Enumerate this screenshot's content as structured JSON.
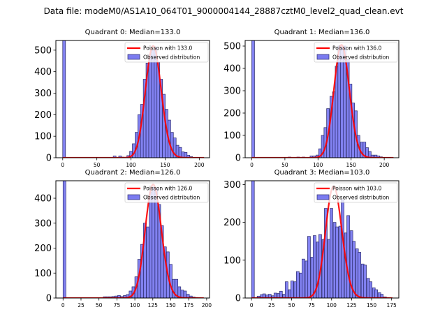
{
  "suptitle": "Data file: modeM0/AS1A10_064T01_9000004144_28887cztM0_level2_quad_clean.evt",
  "colors": {
    "bar_fill": "#7b7bf0",
    "bar_edge": "#2b2b6b",
    "poisson_line": "#ff0000"
  },
  "chart_data": [
    {
      "type": "bar",
      "title": "Quadrant 0: Median=133.0",
      "median": 133.0,
      "xlim": [
        -10,
        215
      ],
      "ylim": [
        0,
        545
      ],
      "xticks": [
        0,
        50,
        100,
        150,
        200
      ],
      "yticks": [
        0,
        100,
        200,
        300,
        400,
        500
      ],
      "bin_width": 4.1,
      "legend": {
        "position": "top-right",
        "entries": [
          "Poisson with 133.0",
          "Observed distribution"
        ]
      },
      "poisson_peak": 520,
      "bins": [
        {
          "x": 0,
          "y": 545
        },
        {
          "x": 74,
          "y": 8
        },
        {
          "x": 82,
          "y": 8
        },
        {
          "x": 86,
          "y": 3
        },
        {
          "x": 94,
          "y": 10
        },
        {
          "x": 98,
          "y": 30
        },
        {
          "x": 102,
          "y": 65
        },
        {
          "x": 106,
          "y": 118
        },
        {
          "x": 110,
          "y": 200
        },
        {
          "x": 114,
          "y": 248
        },
        {
          "x": 118,
          "y": 365
        },
        {
          "x": 122,
          "y": 440
        },
        {
          "x": 126,
          "y": 478
        },
        {
          "x": 130,
          "y": 500
        },
        {
          "x": 134,
          "y": 515
        },
        {
          "x": 138,
          "y": 445
        },
        {
          "x": 142,
          "y": 365
        },
        {
          "x": 146,
          "y": 295
        },
        {
          "x": 150,
          "y": 225
        },
        {
          "x": 154,
          "y": 175
        },
        {
          "x": 158,
          "y": 118
        },
        {
          "x": 162,
          "y": 92
        },
        {
          "x": 166,
          "y": 58
        },
        {
          "x": 170,
          "y": 48
        },
        {
          "x": 174,
          "y": 27
        },
        {
          "x": 178,
          "y": 25
        },
        {
          "x": 182,
          "y": 12
        },
        {
          "x": 186,
          "y": 5
        },
        {
          "x": 190,
          "y": 2
        },
        {
          "x": 194,
          "y": 2
        },
        {
          "x": 198,
          "y": 2
        },
        {
          "x": 202,
          "y": 1
        }
      ]
    },
    {
      "type": "bar",
      "title": "Quadrant 1: Median=136.0",
      "median": 136.0,
      "xlim": [
        -10,
        222
      ],
      "ylim": [
        0,
        525
      ],
      "xticks": [
        0,
        50,
        100,
        150,
        200
      ],
      "yticks": [
        0,
        100,
        200,
        300,
        400,
        500
      ],
      "bin_width": 4.2,
      "legend": {
        "position": "top-right",
        "entries": [
          "Poisson with 136.0",
          "Observed distribution"
        ]
      },
      "poisson_peak": 505,
      "bins": [
        {
          "x": 0,
          "y": 525
        },
        {
          "x": 55,
          "y": 3
        },
        {
          "x": 68,
          "y": 3
        },
        {
          "x": 76,
          "y": 3
        },
        {
          "x": 88,
          "y": 8
        },
        {
          "x": 92,
          "y": 8
        },
        {
          "x": 97,
          "y": 12
        },
        {
          "x": 101,
          "y": 40
        },
        {
          "x": 105,
          "y": 100
        },
        {
          "x": 109,
          "y": 135
        },
        {
          "x": 113,
          "y": 220
        },
        {
          "x": 118,
          "y": 275
        },
        {
          "x": 122,
          "y": 295
        },
        {
          "x": 126,
          "y": 410
        },
        {
          "x": 130,
          "y": 500
        },
        {
          "x": 134,
          "y": 495
        },
        {
          "x": 138,
          "y": 500
        },
        {
          "x": 143,
          "y": 440
        },
        {
          "x": 147,
          "y": 330
        },
        {
          "x": 151,
          "y": 245
        },
        {
          "x": 155,
          "y": 210
        },
        {
          "x": 159,
          "y": 100
        },
        {
          "x": 164,
          "y": 70
        },
        {
          "x": 168,
          "y": 70
        },
        {
          "x": 172,
          "y": 45
        },
        {
          "x": 176,
          "y": 28
        },
        {
          "x": 180,
          "y": 12
        },
        {
          "x": 185,
          "y": 12
        },
        {
          "x": 189,
          "y": 8
        },
        {
          "x": 193,
          "y": 4
        },
        {
          "x": 197,
          "y": 2
        },
        {
          "x": 201,
          "y": 2
        },
        {
          "x": 206,
          "y": 2
        }
      ]
    },
    {
      "type": "bar",
      "title": "Quadrant 2: Median=126.0",
      "median": 126.0,
      "xlim": [
        -10,
        204
      ],
      "ylim": [
        0,
        470
      ],
      "xticks": [
        0,
        25,
        50,
        75,
        100,
        125,
        150,
        175,
        200
      ],
      "yticks": [
        0,
        100,
        200,
        300,
        400
      ],
      "bin_width": 3.9,
      "legend": {
        "position": "top-right",
        "entries": [
          "Poisson with 126.0",
          "Observed distribution"
        ]
      },
      "poisson_peak": 455,
      "bins": [
        {
          "x": 0,
          "y": 470
        },
        {
          "x": 56,
          "y": 5
        },
        {
          "x": 60,
          "y": 5
        },
        {
          "x": 64,
          "y": 5
        },
        {
          "x": 68,
          "y": 6
        },
        {
          "x": 72,
          "y": 8
        },
        {
          "x": 76,
          "y": 10
        },
        {
          "x": 80,
          "y": 6
        },
        {
          "x": 84,
          "y": 10
        },
        {
          "x": 88,
          "y": 14
        },
        {
          "x": 92,
          "y": 28
        },
        {
          "x": 96,
          "y": 45
        },
        {
          "x": 100,
          "y": 85
        },
        {
          "x": 104,
          "y": 155
        },
        {
          "x": 108,
          "y": 215
        },
        {
          "x": 112,
          "y": 300
        },
        {
          "x": 116,
          "y": 285
        },
        {
          "x": 120,
          "y": 425
        },
        {
          "x": 124,
          "y": 445
        },
        {
          "x": 128,
          "y": 440
        },
        {
          "x": 132,
          "y": 375
        },
        {
          "x": 136,
          "y": 290
        },
        {
          "x": 140,
          "y": 205
        },
        {
          "x": 144,
          "y": 185
        },
        {
          "x": 148,
          "y": 135
        },
        {
          "x": 152,
          "y": 75
        },
        {
          "x": 156,
          "y": 75
        },
        {
          "x": 160,
          "y": 45
        },
        {
          "x": 164,
          "y": 32
        },
        {
          "x": 168,
          "y": 28
        },
        {
          "x": 172,
          "y": 15
        },
        {
          "x": 176,
          "y": 8
        },
        {
          "x": 180,
          "y": 4
        },
        {
          "x": 184,
          "y": 2
        },
        {
          "x": 188,
          "y": 1
        }
      ]
    },
    {
      "type": "bar",
      "title": "Quadrant 3: Median=103.0",
      "median": 103.0,
      "xlim": [
        -8,
        184
      ],
      "ylim": [
        0,
        310
      ],
      "xticks": [
        0,
        25,
        50,
        75,
        100,
        125,
        150,
        175
      ],
      "yticks": [
        0,
        100,
        200,
        300
      ],
      "bin_width": 3.5,
      "legend": {
        "position": "top-right",
        "entries": [
          "Poisson with 103.0",
          "Observed distribution"
        ]
      },
      "poisson_peak": 295,
      "bins": [
        {
          "x": 0,
          "y": 310
        },
        {
          "x": 7,
          "y": 5
        },
        {
          "x": 11,
          "y": 9
        },
        {
          "x": 14,
          "y": 11
        },
        {
          "x": 18,
          "y": 8
        },
        {
          "x": 21,
          "y": 10
        },
        {
          "x": 25,
          "y": 6
        },
        {
          "x": 28,
          "y": 13
        },
        {
          "x": 32,
          "y": 12
        },
        {
          "x": 35,
          "y": 18
        },
        {
          "x": 39,
          "y": 10
        },
        {
          "x": 42,
          "y": 43
        },
        {
          "x": 46,
          "y": 22
        },
        {
          "x": 49,
          "y": 45
        },
        {
          "x": 53,
          "y": 43
        },
        {
          "x": 56,
          "y": 70
        },
        {
          "x": 60,
          "y": 66
        },
        {
          "x": 63,
          "y": 103
        },
        {
          "x": 67,
          "y": 98
        },
        {
          "x": 70,
          "y": 163
        },
        {
          "x": 74,
          "y": 108
        },
        {
          "x": 77,
          "y": 165
        },
        {
          "x": 81,
          "y": 148
        },
        {
          "x": 84,
          "y": 168
        },
        {
          "x": 88,
          "y": 155
        },
        {
          "x": 91,
          "y": 237
        },
        {
          "x": 95,
          "y": 155
        },
        {
          "x": 98,
          "y": 237
        },
        {
          "x": 102,
          "y": 200
        },
        {
          "x": 105,
          "y": 188
        },
        {
          "x": 109,
          "y": 190
        },
        {
          "x": 112,
          "y": 260
        },
        {
          "x": 116,
          "y": 172
        },
        {
          "x": 119,
          "y": 218
        },
        {
          "x": 123,
          "y": 178
        },
        {
          "x": 126,
          "y": 150
        },
        {
          "x": 130,
          "y": 130
        },
        {
          "x": 133,
          "y": 121
        },
        {
          "x": 137,
          "y": 90
        },
        {
          "x": 140,
          "y": 87
        },
        {
          "x": 144,
          "y": 52
        },
        {
          "x": 147,
          "y": 43
        },
        {
          "x": 151,
          "y": 27
        },
        {
          "x": 154,
          "y": 22
        },
        {
          "x": 158,
          "y": 14
        },
        {
          "x": 161,
          "y": 10
        },
        {
          "x": 165,
          "y": 3
        },
        {
          "x": 168,
          "y": 1
        }
      ]
    }
  ]
}
